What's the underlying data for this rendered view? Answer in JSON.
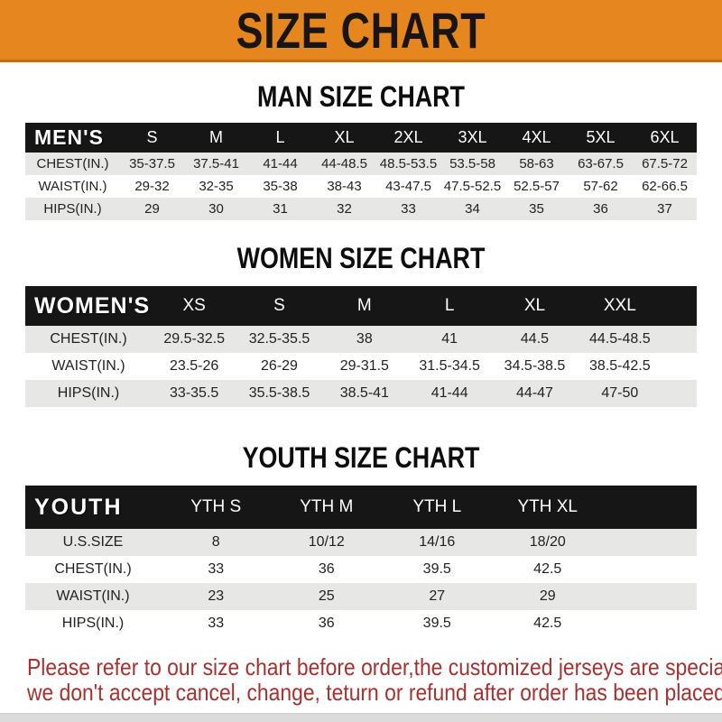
{
  "banner": {
    "title": "SIZE CHART"
  },
  "sections": [
    {
      "title": "MAN SIZE CHART",
      "header_label": "MEN'S",
      "columns": [
        "S",
        "M",
        "L",
        "XL",
        "2XL",
        "3XL",
        "4XL",
        "5XL",
        "6XL"
      ],
      "rows": [
        {
          "label": "CHEST(IN.)",
          "values": [
            "35-37.5",
            "37.5-41",
            "41-44",
            "44-48.5",
            "48.5-53.5",
            "53.5-58",
            "58-63",
            "63-67.5",
            "67.5-72"
          ]
        },
        {
          "label": "WAIST(IN.)",
          "values": [
            "29-32",
            "32-35",
            "35-38",
            "38-43",
            "43-47.5",
            "47.5-52.5",
            "52.5-57",
            "57-62",
            "62-66.5"
          ]
        },
        {
          "label": "HIPS(IN.)",
          "values": [
            "29",
            "30",
            "31",
            "32",
            "33",
            "34",
            "35",
            "36",
            "37"
          ]
        }
      ]
    },
    {
      "title": "WOMEN SIZE CHART",
      "header_label": "WOMEN'S",
      "columns": [
        "XS",
        "S",
        "M",
        "L",
        "XL",
        "XXL"
      ],
      "rows": [
        {
          "label": "CHEST(IN.)",
          "values": [
            "29.5-32.5",
            "32.5-35.5",
            "38",
            "41",
            "44.5",
            "44.5-48.5"
          ]
        },
        {
          "label": "WAIST(IN.)",
          "values": [
            "23.5-26",
            "26-29",
            "29-31.5",
            "31.5-34.5",
            "34.5-38.5",
            "38.5-42.5"
          ]
        },
        {
          "label": "HIPS(IN.)",
          "values": [
            "33-35.5",
            "35.5-38.5",
            "38.5-41",
            "41-44",
            "44-47",
            "47-50"
          ]
        }
      ]
    },
    {
      "title": "YOUTH SIZE CHART",
      "header_label": "YOUTH",
      "columns": [
        "YTH S",
        "YTH M",
        "YTH L",
        "YTH XL"
      ],
      "rows": [
        {
          "label": "U.S.SIZE",
          "values": [
            "8",
            "10/12",
            "14/16",
            "18/20"
          ]
        },
        {
          "label": "CHEST(IN.)",
          "values": [
            "33",
            "36",
            "39.5",
            "42.5"
          ]
        },
        {
          "label": "WAIST(IN.)",
          "values": [
            "23",
            "25",
            "27",
            "29"
          ]
        },
        {
          "label": "HIPS(IN.)",
          "values": [
            "33",
            "36",
            "39.5",
            "42.5"
          ]
        }
      ]
    }
  ],
  "footer": {
    "line1": "Please refer to our size chart before order,the customized jerseys are special products,",
    "line2": "we don't accept cancel, change, teturn or refund after order has been placed!"
  },
  "colors": {
    "banner_orange": "#E5861E",
    "banner_border": "#C06D10",
    "band_black": "#161616",
    "stripe_gray": "#E7E7E5",
    "footer_red": "#A33230"
  }
}
